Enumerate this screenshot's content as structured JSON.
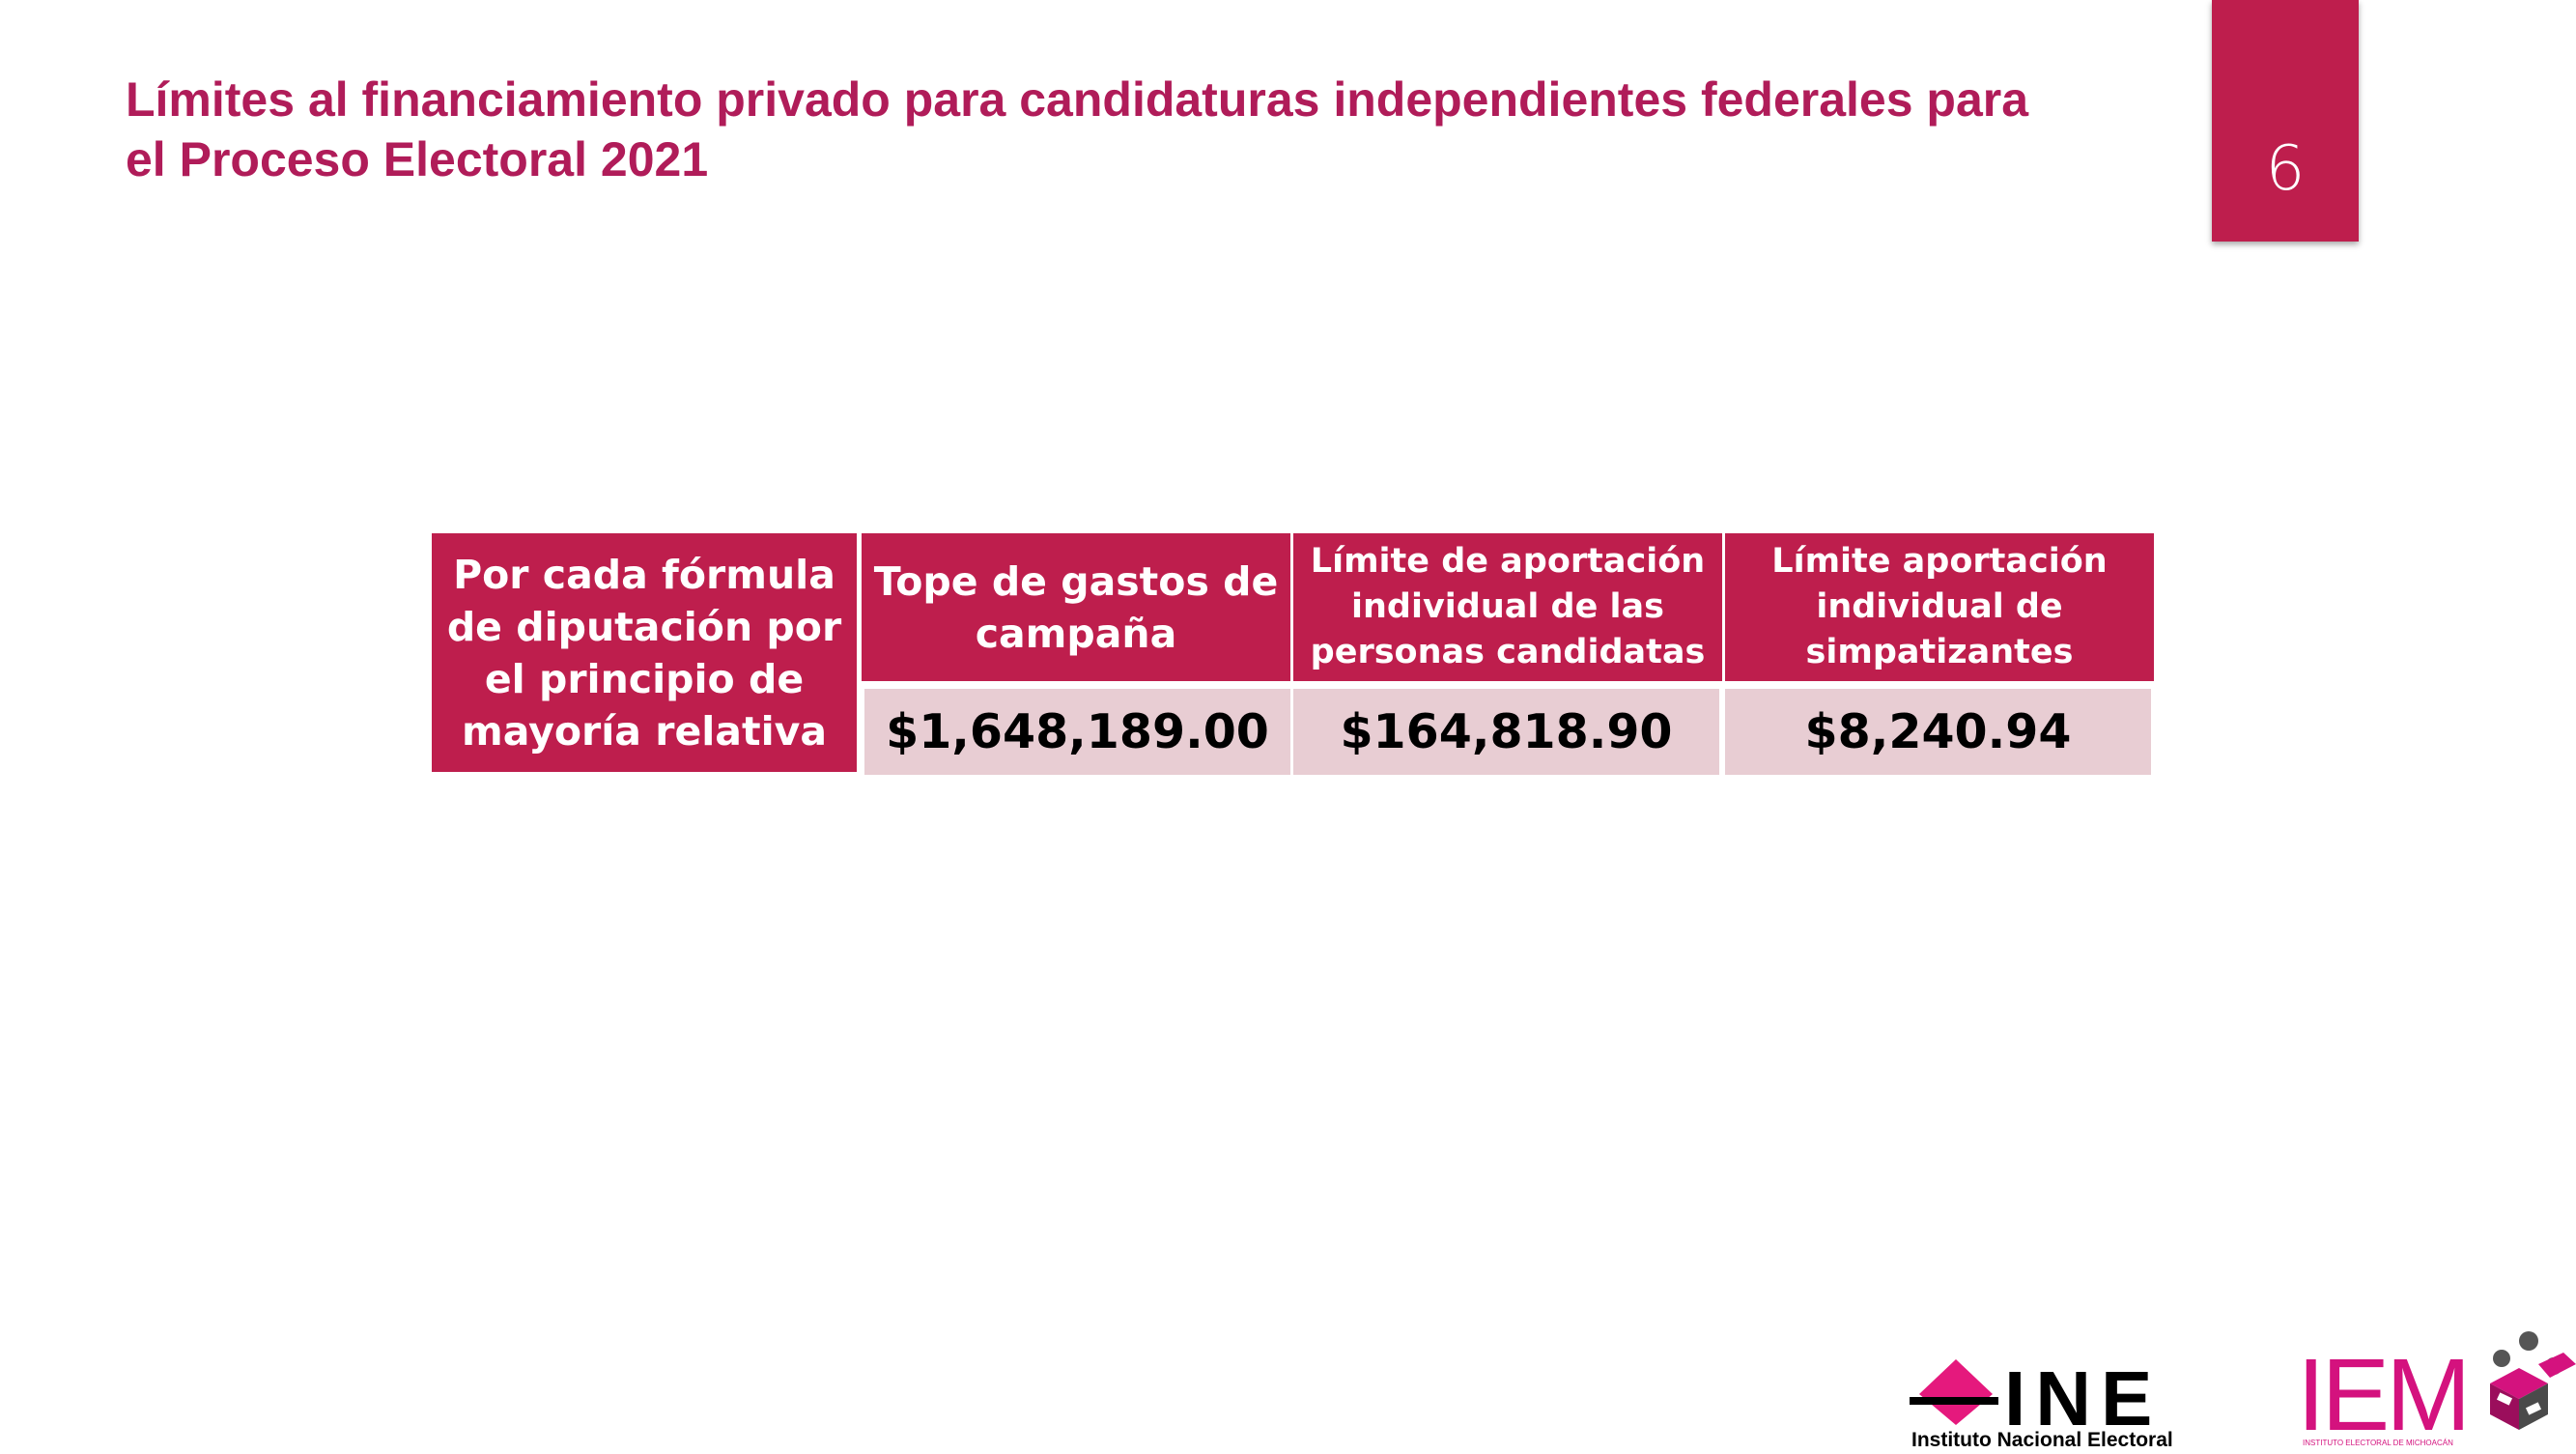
{
  "slide": {
    "title": "Límites al financiamiento privado para candidaturas independientes federales para el Proceso Electoral 2021",
    "page_number": "6"
  },
  "table": {
    "row_header": "Por cada fórmula de diputación por el principio de mayoría relativa",
    "columns": [
      "Tope de gastos de campaña",
      "Límite de aportación individual de las personas candidatas",
      "Límite aportación individual de simpatizantes"
    ],
    "values": [
      "$1,648,189.00",
      "$164,818.90",
      "$8,240.94"
    ]
  },
  "logos": {
    "ine": {
      "wordmark": "INE",
      "caption": "Instituto Nacional Electoral",
      "color": "#e5197d"
    },
    "iem": {
      "wordmark": "IEM",
      "caption": "INSTITUTO ELECTORAL DE MICHOACÁN",
      "color": "#d4127e"
    }
  },
  "colors": {
    "accent": "#be1e4d",
    "title": "#b01c59",
    "value_fill": "#e8cdd3"
  }
}
